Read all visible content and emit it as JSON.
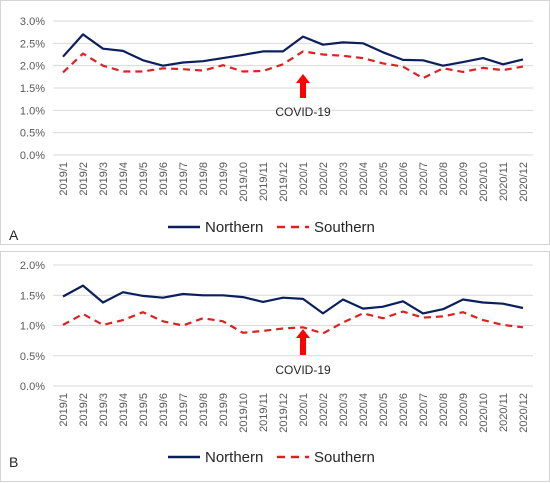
{
  "chart_data": [
    {
      "type": "line",
      "panel_label": "A",
      "categories": [
        "2019/1",
        "2019/2",
        "2019/3",
        "2019/4",
        "2019/5",
        "2019/6",
        "2019/7",
        "2019/8",
        "2019/9",
        "2019/10",
        "2019/11",
        "2019/12",
        "2020/1",
        "2020/2",
        "2020/3",
        "2020/4",
        "2020/5",
        "2020/6",
        "2020/7",
        "2020/8",
        "2020/9",
        "2020/10",
        "2020/11",
        "2020/12"
      ],
      "y_ticks": [
        "0.0%",
        "0.5%",
        "1.0%",
        "1.5%",
        "2.0%",
        "2.5%",
        "3.0%"
      ],
      "ylim": [
        0,
        3.0
      ],
      "grid": true,
      "legend_position": "bottom",
      "series": [
        {
          "name": "Northern",
          "color": "#0b1f5c",
          "style": "solid",
          "values": [
            2.2,
            2.7,
            2.38,
            2.33,
            2.12,
            2.0,
            2.07,
            2.1,
            2.17,
            2.24,
            2.32,
            2.32,
            2.65,
            2.47,
            2.52,
            2.5,
            2.3,
            2.13,
            2.12,
            2.0,
            2.08,
            2.17,
            2.03,
            2.14
          ]
        },
        {
          "name": "Southern",
          "color": "#e02020",
          "style": "dashed",
          "values": [
            1.85,
            2.27,
            2.0,
            1.87,
            1.87,
            1.94,
            1.92,
            1.89,
            2.01,
            1.87,
            1.88,
            2.03,
            2.32,
            2.25,
            2.22,
            2.17,
            2.05,
            1.98,
            1.72,
            1.94,
            1.86,
            1.95,
            1.9,
            1.98
          ]
        }
      ],
      "annotation": {
        "text": "COVID-19",
        "category": "2020/1",
        "arrow_color": "#ff0000"
      }
    },
    {
      "type": "line",
      "panel_label": "B",
      "categories": [
        "2019/1",
        "2019/2",
        "2019/3",
        "2019/4",
        "2019/5",
        "2019/6",
        "2019/7",
        "2019/8",
        "2019/9",
        "2019/10",
        "2019/11",
        "2019/12",
        "2020/1",
        "2020/2",
        "2020/3",
        "2020/4",
        "2020/5",
        "2020/6",
        "2020/7",
        "2020/8",
        "2020/9",
        "2020/10",
        "2020/11",
        "2020/12"
      ],
      "y_ticks": [
        "0.0%",
        "0.5%",
        "1.0%",
        "1.5%",
        "2.0%"
      ],
      "ylim": [
        0,
        2.0
      ],
      "grid": true,
      "legend_position": "bottom",
      "series": [
        {
          "name": "Northern",
          "color": "#0b1f5c",
          "style": "solid",
          "values": [
            1.48,
            1.66,
            1.38,
            1.55,
            1.49,
            1.46,
            1.52,
            1.5,
            1.5,
            1.47,
            1.39,
            1.46,
            1.44,
            1.2,
            1.43,
            1.28,
            1.31,
            1.4,
            1.2,
            1.27,
            1.43,
            1.38,
            1.36,
            1.29
          ]
        },
        {
          "name": "Southern",
          "color": "#e02020",
          "style": "dashed",
          "values": [
            1.01,
            1.19,
            1.01,
            1.09,
            1.22,
            1.07,
            1.0,
            1.12,
            1.07,
            0.88,
            0.91,
            0.95,
            0.97,
            0.87,
            1.05,
            1.2,
            1.12,
            1.23,
            1.13,
            1.15,
            1.22,
            1.09,
            1.01,
            0.97
          ]
        }
      ],
      "annotation": {
        "text": "COVID-19",
        "category": "2020/1",
        "arrow_color": "#ff0000"
      }
    }
  ]
}
